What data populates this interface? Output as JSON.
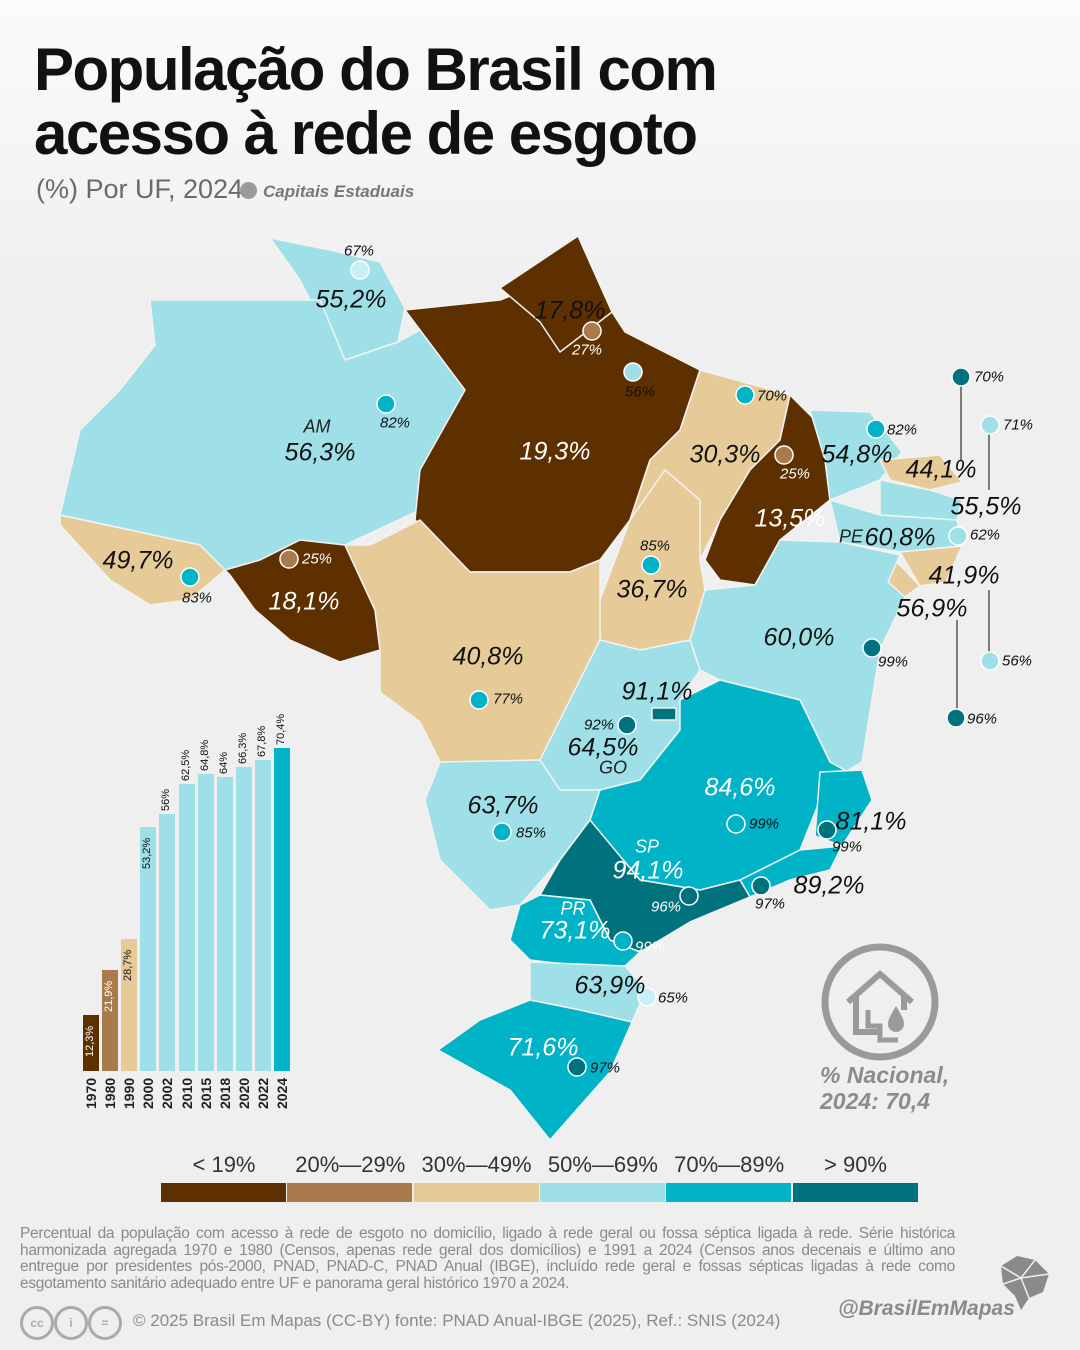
{
  "title_line1": "População do Brasil com",
  "title_line2": "acesso à rede de esgoto",
  "subtitle": "(%) Por UF, 2024",
  "capitals_legend": "Capitais Estaduais",
  "colors": {
    "lt19": "#5e3000",
    "b20_29": "#a87a4c",
    "b30_49": "#e6cb98",
    "b50_69": "#9fe0e8",
    "b70_89": "#00b3c7",
    "gt90": "#00727e",
    "capital_legend": "#9a9a9a"
  },
  "legend": [
    "< 19%",
    "20%—29%",
    "30%—49%",
    "50%—69%",
    "70%—89%",
    "> 90%"
  ],
  "states": {
    "RR": {
      "value": "55,2%",
      "capital": "67%"
    },
    "AM": {
      "uf": "AM",
      "value": "56,3%",
      "capital": "82%"
    },
    "AP": {
      "value": "17,8%",
      "capital": "27%"
    },
    "PA": {
      "value": "19,3%",
      "capital": "56%"
    },
    "MA": {
      "value": "30,3%",
      "capital": "70%"
    },
    "PI": {
      "value": "13,5%",
      "capital": "25%"
    },
    "CE": {
      "value": "54,8%",
      "capital": "82%"
    },
    "RN": {
      "value": "44,1%",
      "capital": "70%"
    },
    "PB": {
      "value": "55,5%",
      "capital": "71%"
    },
    "PE": {
      "uf": "PE",
      "value": "60,8%",
      "capital": "62%"
    },
    "AL": {
      "value": "41,9%",
      "capital": "56%"
    },
    "SE": {
      "value": "56,9%",
      "capital": "96%"
    },
    "BA": {
      "value": "60,0%",
      "capital": "99%"
    },
    "TO": {
      "value": "36,7%",
      "capital": "85%"
    },
    "AC": {
      "value": "49,7%",
      "capital": "83%"
    },
    "RO": {
      "value": "18,1%",
      "capital": "25%"
    },
    "MT": {
      "value": "40,8%",
      "capital": "77%"
    },
    "DF": {
      "value": "91,1%"
    },
    "GO": {
      "uf": "GO",
      "value": "64,5%",
      "capital": "92%"
    },
    "MS": {
      "value": "63,7%",
      "capital": "85%"
    },
    "MG": {
      "value": "84,6%",
      "capital": "99%"
    },
    "ES": {
      "value": "81,1%",
      "capital": "99%"
    },
    "RJ": {
      "value": "89,2%",
      "capital": "97%"
    },
    "SP": {
      "uf": "SP",
      "value": "94,1%",
      "capital": "96%"
    },
    "PR": {
      "uf": "PR",
      "value": "73,1%",
      "capital": "99%"
    },
    "SC": {
      "value": "63,9%",
      "capital": "65%"
    },
    "RS": {
      "value": "71,6%",
      "capital": "97%"
    }
  },
  "chart_data": {
    "type": "bar",
    "categories": [
      "1970",
      "1980",
      "1990",
      "2000",
      "2002",
      "2010",
      "2015",
      "2018",
      "2020",
      "2022",
      "2024"
    ],
    "values": [
      12.3,
      21.9,
      28.7,
      53.2,
      56,
      62.5,
      64.8,
      64,
      66.3,
      67.8,
      70.4
    ],
    "labels": [
      "12,3%",
      "21,9%",
      "28,7%",
      "53,2%",
      "56%",
      "62,5%",
      "64,8%",
      "64%",
      "66,3%",
      "67,8%",
      "70,4%"
    ],
    "ylim": [
      0,
      75
    ]
  },
  "national": {
    "line1": "% Nacional,",
    "line2": "2024: 70,4",
    "icon": "house-water-drop-icon"
  },
  "note": "Percentual da população com acesso à rede de esgoto no domicílio, ligado à rede geral ou fossa séptica ligada à rede. Série histórica harmonizada agregada 1970 e 1980 (Censos, apenas rede geral dos domicílios) e 1991 a 2024 (Censos anos decenais e último ano entregue por presidentes pós-2000, PNAD, PNAD-C, PNAD Anual (IBGE), incluído rede geral e fossas sépticas ligadas à rede como esgotamento sanitário adequado entre UF e panorama geral histórico 1970 a 2024.",
  "license_icons": [
    "cc",
    "by",
    "nd"
  ],
  "credit": "© 2025  Brasil Em Mapas (CC-BY)  fonte: PNAD Anual-IBGE (2025), Ref.: SNIS (2024)",
  "handle": "@BrasilEmMapas"
}
